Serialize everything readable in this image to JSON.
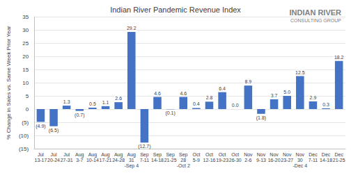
{
  "chart_data": {
    "type": "bar",
    "title": "Indian River Pandemic Revenue Index",
    "y_label": "% Change in Sales vs. Same Week Prior Year",
    "annotations": [
      "INDIAN RIVER",
      "CONSULTING GROUP"
    ],
    "categories": [
      "Jul\n13-17",
      "Jul\n20-24",
      "Jul\n27-31",
      "Aug\n3-7",
      "Aug\n10-14",
      "Aug\n17-21",
      "Aug\n24-28",
      "Aug\n31\n-Sep 4",
      "Sep\n7-11",
      "Sep\n14-18",
      "Sep\n21-25",
      "Sep\n28\n-Oct 2",
      "Oct\n5-9",
      "Oct\n12-16",
      "Oct\n19-23",
      "Oct\n26-30",
      "Nov\n2-6",
      "Nov\n9-13",
      "Nov\n16-20",
      "Nov\n23-27",
      "Nov\n30\n-Dec 4",
      "Dec\n7-11",
      "Dec\n14-18",
      "Dec\n21-25"
    ],
    "values": [
      -4.9,
      -6.5,
      1.3,
      -0.7,
      0.5,
      1.1,
      2.6,
      29.2,
      -12.7,
      4.6,
      -0.1,
      4.6,
      0.4,
      2.8,
      6.4,
      0.0,
      8.9,
      -1.8,
      3.7,
      5.0,
      12.5,
      2.9,
      0.3,
      18.2
    ],
    "value_labels": [
      "(4.9)",
      "(6.5)",
      "1.3",
      "(0.7)",
      "0.5",
      "1.1",
      "2.6",
      "29.2",
      "(12.7)",
      "4.6",
      "(0.1)",
      "4.6",
      "0.4",
      "2.8",
      "6.4",
      "0.0",
      "8.9",
      "(1.8)",
      "3.7",
      "5.0",
      "12.5",
      "2.9",
      "0.3",
      "18.2"
    ],
    "color": "#4472c4",
    "ylim": [
      -15,
      35
    ],
    "yticks": [
      {
        "value": -15,
        "label": "(15)"
      },
      {
        "value": -10,
        "label": "(10)"
      },
      {
        "value": -5,
        "label": "(5)"
      },
      0,
      5,
      10,
      15,
      20,
      25,
      30,
      35
    ],
    "grid": true,
    "data_labels": true
  }
}
